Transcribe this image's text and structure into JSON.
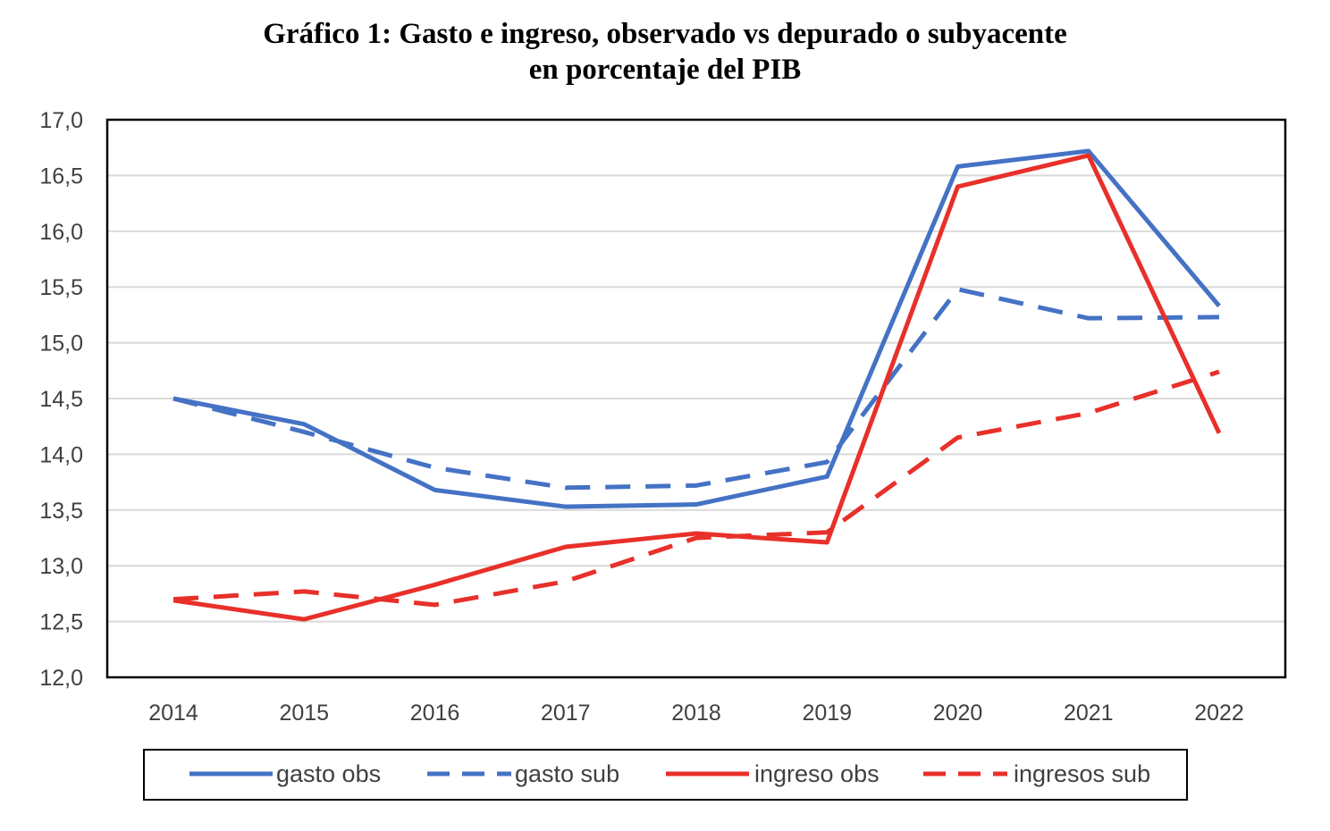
{
  "chart_data": {
    "type": "line",
    "title_line1": "Gráfico 1: Gasto e ingreso, observado vs depurado o subyacente",
    "title_line2": "en porcentaje del PIB",
    "xlabel": "",
    "ylabel": "",
    "categories": [
      "2014",
      "2015",
      "2016",
      "2017",
      "2018",
      "2019",
      "2020",
      "2021",
      "2022"
    ],
    "ylim": [
      12.0,
      17.0
    ],
    "yticks": [
      "12,0",
      "12,5",
      "13,0",
      "13,5",
      "14,0",
      "14,5",
      "15,0",
      "15,5",
      "16,0",
      "16,5",
      "17,0"
    ],
    "grid": true,
    "legend_position": "bottom",
    "series": [
      {
        "name": "gasto obs",
        "color": "#4472C4",
        "dash": "solid",
        "values": [
          14.5,
          14.27,
          13.68,
          13.53,
          13.55,
          13.8,
          16.58,
          16.72,
          15.33
        ]
      },
      {
        "name": "gasto sub",
        "color": "#4472C4",
        "dash": "dashed",
        "values": [
          14.5,
          14.2,
          13.88,
          13.7,
          13.72,
          13.93,
          15.48,
          15.22,
          15.23
        ]
      },
      {
        "name": "ingreso obs",
        "color": "#E8302A",
        "dash": "solid",
        "values": [
          12.69,
          12.52,
          12.83,
          13.17,
          13.29,
          13.21,
          16.4,
          16.68,
          14.19
        ]
      },
      {
        "name": "ingresos sub",
        "color": "#E8302A",
        "dash": "dashed",
        "values": [
          12.7,
          12.77,
          12.65,
          12.86,
          13.25,
          13.3,
          14.15,
          14.37,
          14.74
        ]
      }
    ]
  }
}
